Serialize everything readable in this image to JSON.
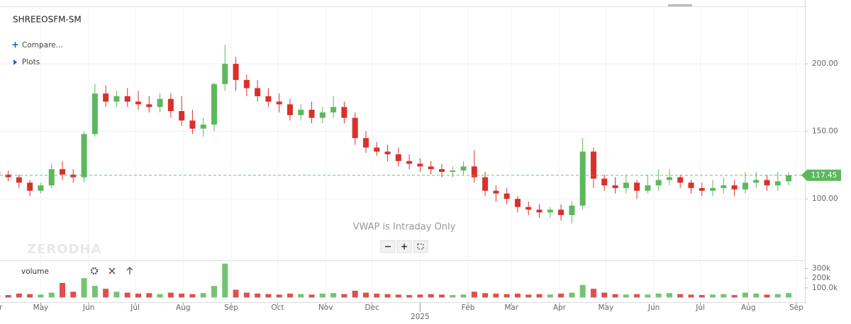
{
  "chart_data": {
    "type": "candlestick",
    "title": "SHREEOSFM-SM",
    "x": [
      2,
      9,
      16,
      23,
      30,
      37,
      44,
      51,
      58,
      65,
      72,
      79,
      86,
      93,
      100,
      107,
      114,
      121,
      128,
      135,
      142,
      149,
      156,
      163,
      170,
      177,
      184,
      191,
      198,
      205,
      212,
      219,
      226,
      233,
      240,
      247,
      254,
      261,
      268,
      275,
      282,
      289,
      296,
      303,
      310,
      317,
      324,
      331,
      338,
      345,
      352,
      359,
      366,
      373,
      380,
      387,
      394,
      401,
      408,
      415,
      422,
      429,
      436,
      443,
      450,
      457,
      464,
      471,
      478,
      485,
      492,
      499,
      506,
      513
    ],
    "open": [
      120,
      118,
      116,
      112,
      106,
      110,
      122,
      118,
      116,
      148,
      178,
      172,
      176,
      172,
      170,
      168,
      174,
      165,
      158,
      152,
      155,
      185,
      200,
      188,
      182,
      176,
      172,
      170,
      162,
      166,
      160,
      164,
      168,
      160,
      145,
      138,
      135,
      133,
      128,
      126,
      124,
      122,
      120,
      121,
      124,
      116,
      106,
      104,
      100,
      94,
      92,
      90,
      92,
      88,
      95,
      135,
      115,
      110,
      108,
      112,
      106,
      110,
      114,
      116,
      112,
      108,
      106,
      108,
      110,
      107,
      112,
      114,
      110,
      113
    ],
    "high": [
      124,
      121,
      118,
      114,
      112,
      126,
      128,
      122,
      150,
      185,
      184,
      180,
      182,
      180,
      176,
      178,
      178,
      176,
      166,
      160,
      186,
      214,
      205,
      192,
      188,
      182,
      178,
      174,
      170,
      172,
      168,
      176,
      172,
      164,
      150,
      142,
      140,
      138,
      133,
      130,
      128,
      126,
      124,
      128,
      136,
      120,
      110,
      108,
      102,
      98,
      96,
      94,
      96,
      98,
      145,
      138,
      118,
      116,
      118,
      114,
      118,
      122,
      122,
      118,
      114,
      112,
      114,
      116,
      114,
      120,
      120,
      118,
      120,
      120
    ],
    "low": [
      114,
      113,
      108,
      102,
      104,
      108,
      114,
      112,
      112,
      146,
      168,
      168,
      168,
      166,
      164,
      164,
      160,
      154,
      148,
      146,
      150,
      180,
      180,
      176,
      172,
      168,
      164,
      158,
      158,
      156,
      156,
      160,
      156,
      140,
      134,
      132,
      128,
      124,
      122,
      120,
      118,
      116,
      116,
      118,
      112,
      102,
      98,
      96,
      90,
      88,
      86,
      86,
      84,
      82,
      92,
      108,
      106,
      104,
      104,
      100,
      104,
      106,
      110,
      108,
      104,
      102,
      102,
      104,
      102,
      104,
      108,
      106,
      106,
      110
    ],
    "close": [
      118,
      116,
      112,
      106,
      110,
      122,
      118,
      116,
      148,
      178,
      172,
      176,
      172,
      170,
      168,
      174,
      165,
      158,
      152,
      155,
      185,
      200,
      188,
      182,
      176,
      172,
      170,
      162,
      166,
      160,
      164,
      168,
      160,
      145,
      138,
      135,
      133,
      128,
      126,
      124,
      122,
      120,
      121,
      124,
      116,
      106,
      104,
      100,
      94,
      92,
      90,
      92,
      88,
      95,
      135,
      115,
      110,
      108,
      112,
      106,
      110,
      114,
      116,
      112,
      108,
      106,
      108,
      110,
      107,
      112,
      114,
      110,
      113,
      117.45
    ],
    "volume": [
      30000,
      25000,
      40000,
      35000,
      30000,
      50000,
      150000,
      60000,
      200000,
      120000,
      90000,
      60000,
      50000,
      40000,
      45000,
      35000,
      50000,
      40000,
      35000,
      45000,
      120000,
      350000,
      80000,
      50000,
      40000,
      35000,
      30000,
      40000,
      35000,
      30000,
      40000,
      45000,
      35000,
      70000,
      50000,
      40000,
      35000,
      30000,
      25000,
      30000,
      35000,
      30000,
      25000,
      30000,
      60000,
      45000,
      40000,
      35000,
      40000,
      30000,
      35000,
      30000,
      40000,
      50000,
      130000,
      90000,
      50000,
      35000,
      30000,
      35000,
      30000,
      40000,
      45000,
      35000,
      30000,
      25000,
      30000,
      35000,
      25000,
      50000,
      40000,
      30000,
      35000,
      45000
    ],
    "up_color": "#5cb85c",
    "down_color": "#d9302b",
    "last_price": 117.45,
    "xlim": [
      3.7,
      523.5
    ],
    "xticks": [
      {
        "value": 1,
        "label": "Apr"
      },
      {
        "value": 30,
        "label": "May"
      },
      {
        "value": 61,
        "label": "Jun"
      },
      {
        "value": 91,
        "label": "Jul"
      },
      {
        "value": 122,
        "label": "Aug"
      },
      {
        "value": 153,
        "label": "Sep"
      },
      {
        "value": 183,
        "label": "Oct"
      },
      {
        "value": 214,
        "label": "Nov"
      },
      {
        "value": 244,
        "label": "Dec"
      },
      {
        "value": 275,
        "label": "2025"
      },
      {
        "value": 306,
        "label": "Feb"
      },
      {
        "value": 334,
        "label": "Mar"
      },
      {
        "value": 365,
        "label": "Apr"
      },
      {
        "value": 395,
        "label": "May"
      },
      {
        "value": 426,
        "label": "Jun"
      },
      {
        "value": 456,
        "label": "Jul"
      },
      {
        "value": 487,
        "label": "Aug"
      },
      {
        "value": 518,
        "label": "Sep"
      }
    ],
    "ylim": [
      54.5,
      242
    ],
    "yticks": [
      {
        "value": 100,
        "label": "100.00"
      },
      {
        "value": 150,
        "label": "150.00"
      },
      {
        "value": 200,
        "label": "200.00"
      }
    ],
    "volume_label": "volume",
    "volume_ylim": [
      0,
      355000
    ],
    "volume_ticks": [
      {
        "value": 100000,
        "label": "100.0k"
      },
      {
        "value": 200000,
        "label": "200k"
      },
      {
        "value": 300000,
        "label": "300k"
      }
    ],
    "annotation": "VWAP is Intraday Only",
    "grid": true
  },
  "ui": {
    "compare": "Compare...",
    "plots": "Plots",
    "watermark": "ZERODHA"
  }
}
